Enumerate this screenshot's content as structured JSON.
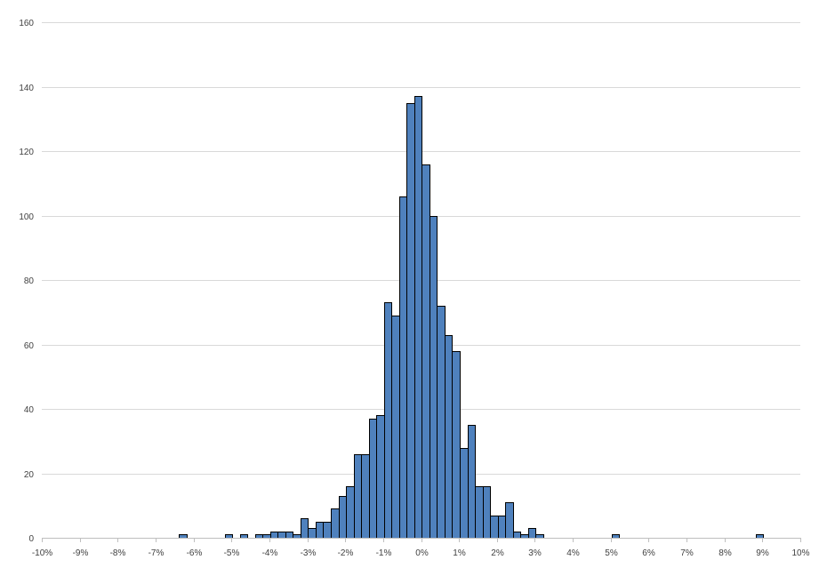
{
  "chart_data": {
    "type": "bar",
    "subtype": "histogram",
    "title": "",
    "xlabel": "",
    "ylabel": "",
    "bar_color": "#4f81bd",
    "bar_edge_color": "#000000",
    "grid_color": "#d9d9d9",
    "grid": true,
    "legend": "none",
    "xlim": [
      -0.1,
      0.1
    ],
    "ylim": [
      0,
      160
    ],
    "bin_width": 0.002,
    "x_ticks": [
      {
        "value": -0.1,
        "label": "-10%"
      },
      {
        "value": -0.09,
        "label": "-9%"
      },
      {
        "value": -0.08,
        "label": "-8%"
      },
      {
        "value": -0.07,
        "label": "-7%"
      },
      {
        "value": -0.06,
        "label": "-6%"
      },
      {
        "value": -0.05,
        "label": "-5%"
      },
      {
        "value": -0.04,
        "label": "-4%"
      },
      {
        "value": -0.03,
        "label": "-3%"
      },
      {
        "value": -0.02,
        "label": "-2%"
      },
      {
        "value": -0.01,
        "label": "-1%"
      },
      {
        "value": 0.0,
        "label": "0%"
      },
      {
        "value": 0.01,
        "label": "1%"
      },
      {
        "value": 0.02,
        "label": "2%"
      },
      {
        "value": 0.03,
        "label": "3%"
      },
      {
        "value": 0.04,
        "label": "4%"
      },
      {
        "value": 0.05,
        "label": "5%"
      },
      {
        "value": 0.06,
        "label": "6%"
      },
      {
        "value": 0.07,
        "label": "7%"
      },
      {
        "value": 0.08,
        "label": "8%"
      },
      {
        "value": 0.09,
        "label": "9%"
      },
      {
        "value": 0.1,
        "label": "10%"
      }
    ],
    "y_ticks": [
      {
        "value": 0,
        "label": "0"
      },
      {
        "value": 20,
        "label": "20"
      },
      {
        "value": 40,
        "label": "40"
      },
      {
        "value": 60,
        "label": "60"
      },
      {
        "value": 80,
        "label": "80"
      },
      {
        "value": 100,
        "label": "100"
      },
      {
        "value": 120,
        "label": "120"
      },
      {
        "value": 140,
        "label": "140"
      },
      {
        "value": 160,
        "label": "160"
      }
    ],
    "bins": [
      {
        "x": -0.0628,
        "count": 1
      },
      {
        "x": -0.0508,
        "count": 1
      },
      {
        "x": -0.0468,
        "count": 1
      },
      {
        "x": -0.0428,
        "count": 1
      },
      {
        "x": -0.0408,
        "count": 1
      },
      {
        "x": -0.0388,
        "count": 2
      },
      {
        "x": -0.0368,
        "count": 2
      },
      {
        "x": -0.0348,
        "count": 2
      },
      {
        "x": -0.0328,
        "count": 1
      },
      {
        "x": -0.0308,
        "count": 6
      },
      {
        "x": -0.0288,
        "count": 3
      },
      {
        "x": -0.0268,
        "count": 5
      },
      {
        "x": -0.0248,
        "count": 5
      },
      {
        "x": -0.0228,
        "count": 9
      },
      {
        "x": -0.0208,
        "count": 13
      },
      {
        "x": -0.0188,
        "count": 16
      },
      {
        "x": -0.0168,
        "count": 26
      },
      {
        "x": -0.0148,
        "count": 26
      },
      {
        "x": -0.0128,
        "count": 37
      },
      {
        "x": -0.0108,
        "count": 38
      },
      {
        "x": -0.0088,
        "count": 73
      },
      {
        "x": -0.0068,
        "count": 69
      },
      {
        "x": -0.0048,
        "count": 106
      },
      {
        "x": -0.0028,
        "count": 135
      },
      {
        "x": -0.0008,
        "count": 137
      },
      {
        "x": 0.0012,
        "count": 116
      },
      {
        "x": 0.0032,
        "count": 100
      },
      {
        "x": 0.0052,
        "count": 72
      },
      {
        "x": 0.0072,
        "count": 63
      },
      {
        "x": 0.0092,
        "count": 58
      },
      {
        "x": 0.0112,
        "count": 28
      },
      {
        "x": 0.0132,
        "count": 35
      },
      {
        "x": 0.0152,
        "count": 16
      },
      {
        "x": 0.0172,
        "count": 16
      },
      {
        "x": 0.0192,
        "count": 7
      },
      {
        "x": 0.0212,
        "count": 7
      },
      {
        "x": 0.0232,
        "count": 11
      },
      {
        "x": 0.0252,
        "count": 2
      },
      {
        "x": 0.0272,
        "count": 1
      },
      {
        "x": 0.0292,
        "count": 3
      },
      {
        "x": 0.0312,
        "count": 1
      },
      {
        "x": 0.0512,
        "count": 1
      },
      {
        "x": 0.0892,
        "count": 1
      }
    ]
  }
}
